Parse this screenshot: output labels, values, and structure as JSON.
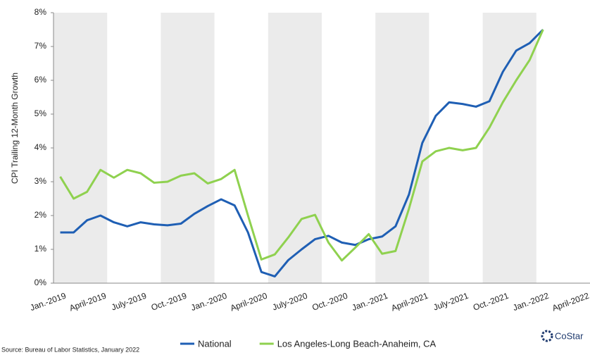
{
  "chart_data": {
    "type": "line",
    "y_label": "CPI Trailing 12-Month Growth",
    "source": "Source: Bureau of Labor Statistics, January 2022",
    "brand": "CoStar",
    "categories": [
      "Jan.-2019",
      null,
      null,
      "April-2019",
      null,
      null,
      "July-2019",
      null,
      null,
      "Oct.-2019",
      null,
      null,
      "Jan.-2020",
      null,
      null,
      "April-2020",
      null,
      null,
      "July-2020",
      null,
      null,
      "Oct.-2020",
      null,
      null,
      "Jan.-2021",
      null,
      null,
      "April-2021",
      null,
      null,
      "July-2021",
      null,
      null,
      "Oct.-2021",
      null,
      null,
      "Jan.-2022",
      null,
      null,
      "April-2022"
    ],
    "series": [
      {
        "name": "National",
        "color": "#1f5fb4",
        "values": [
          1.5,
          1.5,
          1.86,
          2.0,
          1.8,
          1.68,
          1.8,
          1.74,
          1.71,
          1.76,
          2.05,
          2.28,
          2.48,
          2.3,
          1.5,
          0.33,
          0.2,
          0.68,
          1.0,
          1.3,
          1.4,
          1.2,
          1.13,
          1.3,
          1.38,
          1.68,
          2.62,
          4.15,
          4.95,
          5.35,
          5.3,
          5.22,
          5.38,
          6.25,
          6.88,
          7.1,
          7.5,
          null,
          null,
          null
        ]
      },
      {
        "name": "Los Angeles-Long Beach-Anaheim, CA",
        "color": "#8fd14f",
        "values": [
          3.15,
          2.5,
          2.7,
          3.35,
          3.12,
          3.35,
          3.25,
          2.97,
          3.0,
          3.18,
          3.25,
          2.95,
          3.08,
          3.35,
          2.0,
          0.7,
          0.85,
          1.35,
          1.9,
          2.02,
          1.2,
          0.67,
          1.05,
          1.45,
          0.87,
          0.95,
          2.2,
          3.6,
          3.9,
          4.0,
          3.93,
          4.0,
          4.6,
          5.35,
          6.0,
          6.6,
          7.5,
          null,
          null,
          null
        ]
      }
    ],
    "ylim": [
      0,
      8
    ],
    "yticks": [
      {
        "value": 0,
        "label": "0%"
      },
      {
        "value": 1,
        "label": "1%"
      },
      {
        "value": 2,
        "label": "2%"
      },
      {
        "value": 3,
        "label": "3%"
      },
      {
        "value": 4,
        "label": "4%"
      },
      {
        "value": 5,
        "label": "5%"
      },
      {
        "value": 6,
        "label": "6%"
      },
      {
        "value": 7,
        "label": "7%"
      },
      {
        "value": 8,
        "label": "8%"
      }
    ],
    "legend": "bottom"
  }
}
